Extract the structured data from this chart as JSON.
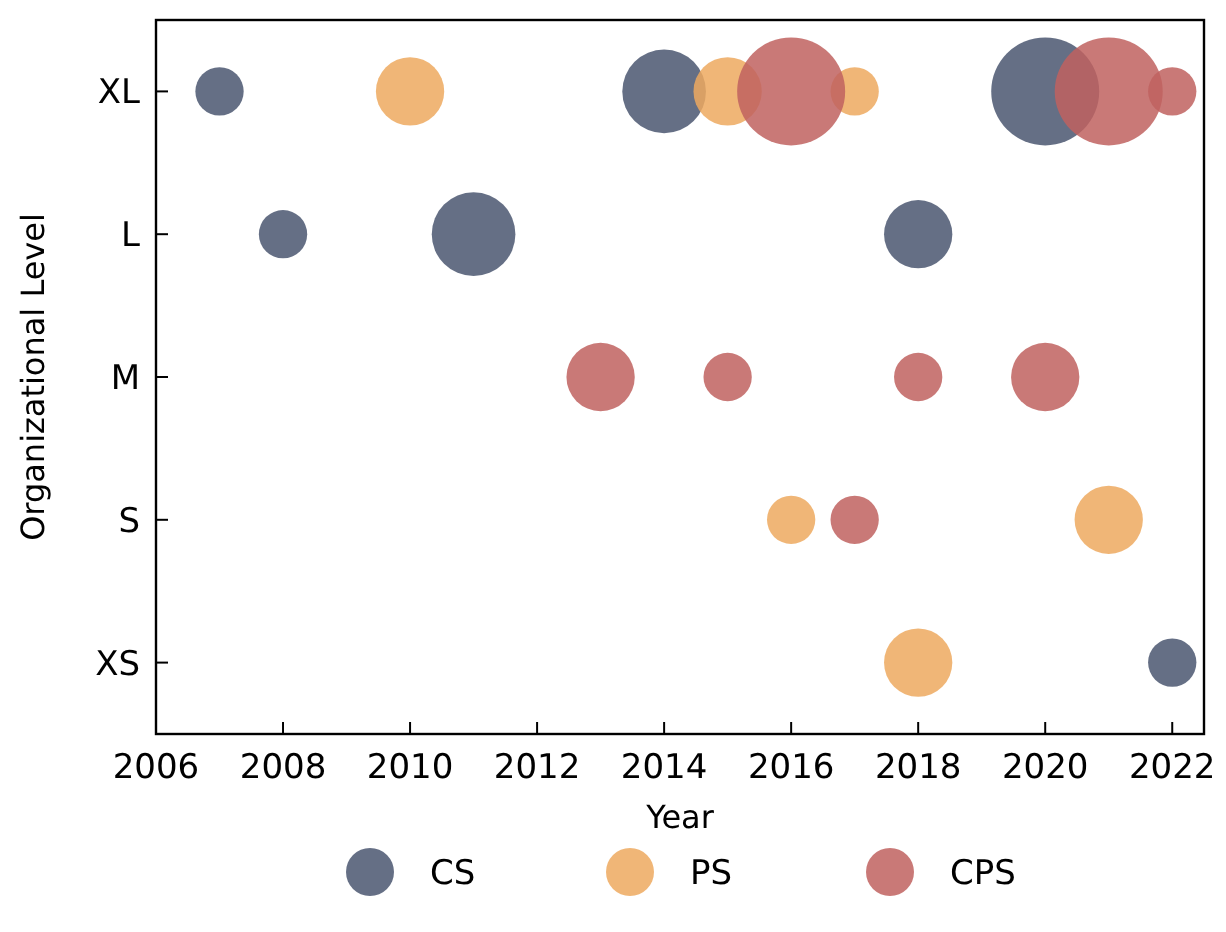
{
  "chart_data": {
    "type": "bubble",
    "orientation": "horizontal",
    "xlabel": "Year",
    "ylabel": "Organizational Level",
    "categories": [
      "XL",
      "L",
      "M",
      "S",
      "XS"
    ],
    "xlim": [
      2006,
      2022.5
    ],
    "xticks": [
      2006,
      2008,
      2010,
      2012,
      2014,
      2016,
      2018,
      2020,
      2022
    ],
    "legend": "bottom",
    "grid": false,
    "series": [
      {
        "name": "CS",
        "color": "#4a5670",
        "x": [
          "XL",
          "XL",
          "XL",
          "L",
          "L",
          "L",
          "XS"
        ],
        "values": [
          2007,
          2014,
          2020,
          2008,
          2011,
          2018,
          2022
        ],
        "sizes": [
          0.2,
          0.6,
          1,
          0.2,
          0.6,
          0.4,
          0.2
        ]
      },
      {
        "name": "PS",
        "color": "#eda95f",
        "x": [
          "XL",
          "XL",
          "XL",
          "S",
          "S",
          "XS"
        ],
        "values": [
          2010,
          2015,
          2017,
          2016,
          2021,
          2018
        ],
        "sizes": [
          0.4,
          0.4,
          0.2,
          0.2,
          0.4,
          0.4
        ]
      },
      {
        "name": "CPS",
        "color": "#c0615f",
        "x": [
          "XL",
          "XL",
          "XL",
          "M",
          "M",
          "M",
          "M",
          "S"
        ],
        "values": [
          2016,
          2021,
          2022,
          2013,
          2015,
          2018,
          2020,
          2017
        ],
        "sizes": [
          1,
          1,
          0.2,
          0.4,
          0.2,
          0.2,
          0.4,
          0.2
        ]
      }
    ]
  }
}
